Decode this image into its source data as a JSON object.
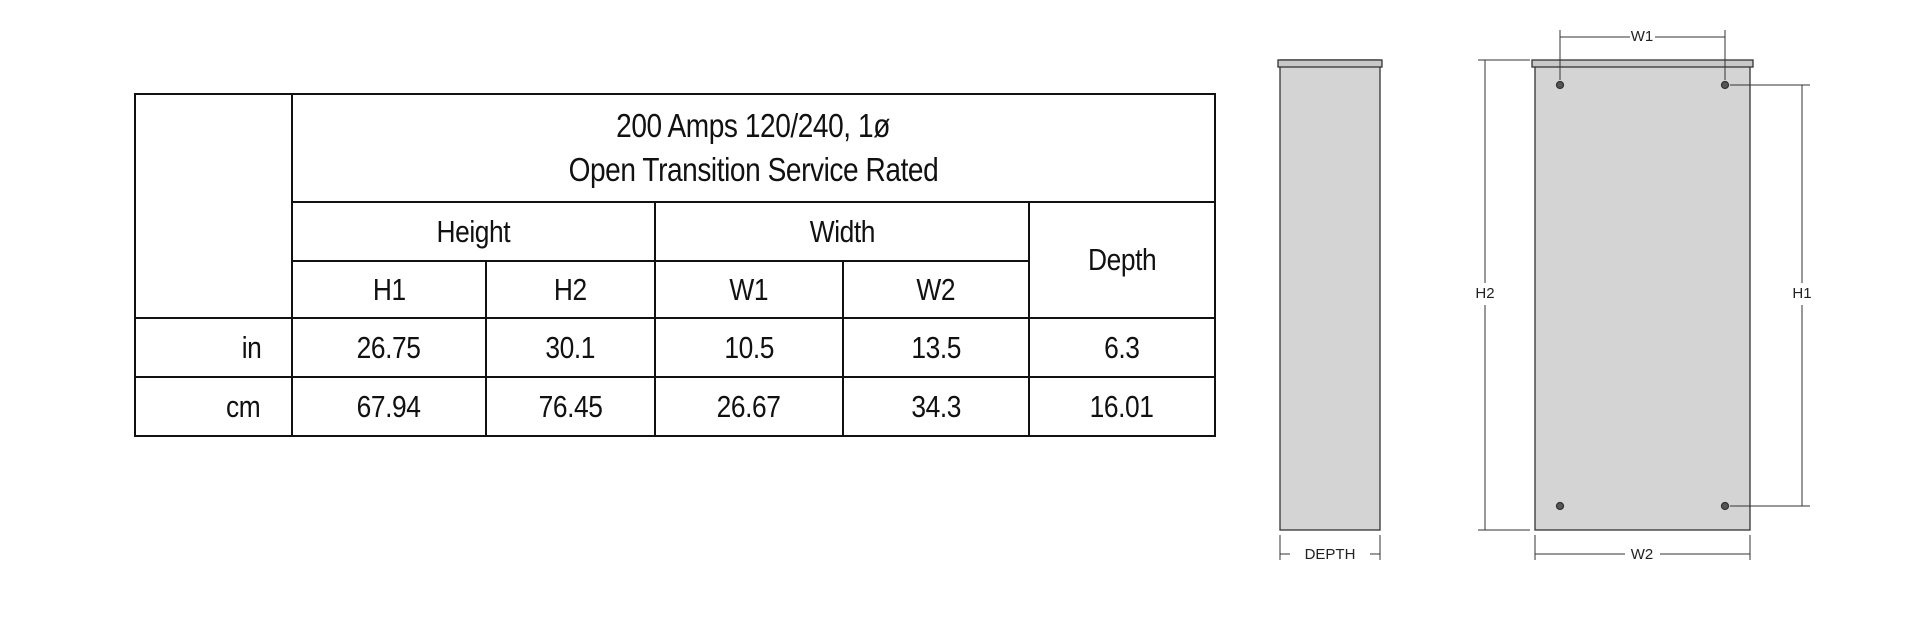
{
  "table": {
    "title": [
      "200 Amps 120/240, 1ø",
      "Open Transition Service Rated"
    ],
    "groups": [
      "Height",
      "Width",
      "Depth"
    ],
    "subheaders": [
      "H1",
      "H2",
      "W1",
      "W2"
    ],
    "rows": [
      [
        "in",
        "26.75",
        "30.1",
        "10.5",
        "13.5",
        "6.3"
      ],
      [
        "cm",
        "67.94",
        "76.45",
        "26.67",
        "34.3",
        "16.01"
      ]
    ]
  },
  "diagram": {
    "w1": "W1",
    "w2": "W2",
    "h1": "H1",
    "h2": "H2",
    "depth": "DEPTH"
  }
}
